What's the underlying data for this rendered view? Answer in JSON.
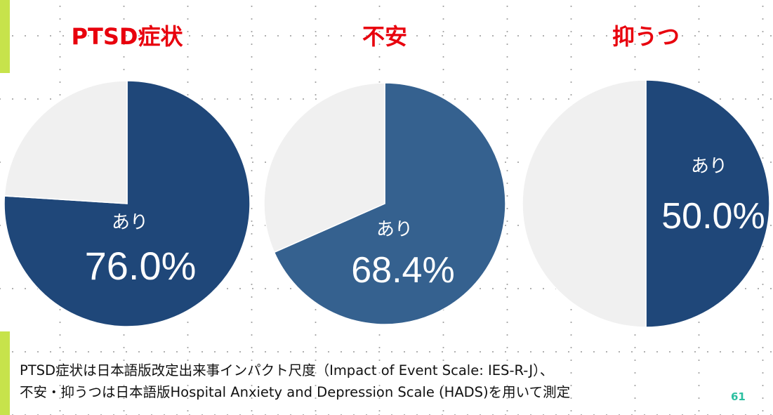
{
  "chart_data": [
    {
      "type": "pie",
      "title": "PTSD症状",
      "slices": [
        {
          "label": "あり",
          "value": 76.0,
          "display": "76.0%",
          "color": "#1f4779"
        },
        {
          "label": "",
          "value": 24.0,
          "color": "#f0f0f0"
        }
      ]
    },
    {
      "type": "pie",
      "title": "不安",
      "slices": [
        {
          "label": "あり",
          "value": 68.4,
          "display": "68.4%",
          "color": "#35618f"
        },
        {
          "label": "",
          "value": 31.6,
          "color": "#f0f0f0"
        }
      ]
    },
    {
      "type": "pie",
      "title": "抑うつ",
      "slices": [
        {
          "label": "あり",
          "value": 50.0,
          "display": "50.0%",
          "color": "#1f4779"
        },
        {
          "label": "",
          "value": 50.0,
          "color": "#f0f0f0"
        }
      ]
    }
  ],
  "colors": {
    "title": "#e8000d",
    "accent": "#c7e34b",
    "page_number": "#2bbfa0"
  },
  "footer": {
    "line1": "PTSD症状は日本語版改定出来事インパクト尺度（Impact of Event Scale: IES-R-J）、",
    "line2": "不安・抑うつは日本語版Hospital Anxiety and Depression Scale (HADS)を用いて測定"
  },
  "page_number": "61"
}
